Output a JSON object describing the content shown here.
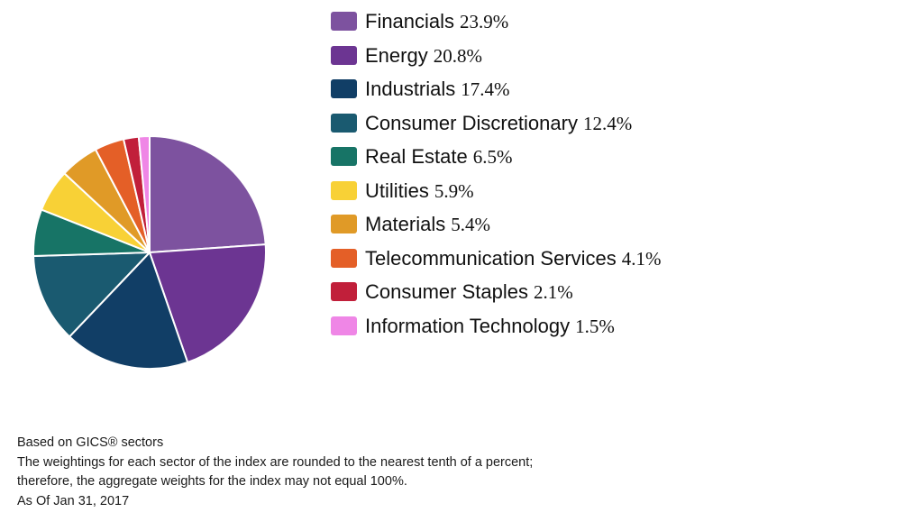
{
  "chart_data": {
    "type": "pie",
    "title": "",
    "labels": [
      "Financials",
      "Energy",
      "Industrials",
      "Consumer Discretionary",
      "Real Estate",
      "Utilities",
      "Materials",
      "Telecommunication Services",
      "Consumer Staples",
      "Information Technology"
    ],
    "values": [
      23.9,
      20.8,
      17.4,
      12.4,
      6.5,
      5.9,
      5.4,
      4.1,
      2.1,
      1.5
    ],
    "value_labels": [
      "23.9%",
      "20.8%",
      "17.4%",
      "12.4%",
      "6.5%",
      "5.9%",
      "5.4%",
      "4.1%",
      "2.1%",
      "1.5%"
    ],
    "colors": [
      "#7d529f",
      "#6c3592",
      "#113e66",
      "#1a5a70",
      "#177466",
      "#f8d136",
      "#e09a27",
      "#e45f27",
      "#c11f3a",
      "#ef86e6"
    ],
    "start_angle": "12 o'clock",
    "direction": "clockwise",
    "legend_position": "right"
  },
  "footnote": {
    "line1": "Based on GICS® sectors",
    "line2": "The weightings for each sector of the index are rounded to the nearest tenth of a percent;",
    "line3": "therefore, the aggregate weights for the index may not equal 100%.",
    "line4": "As Of Jan 31, 2017"
  }
}
